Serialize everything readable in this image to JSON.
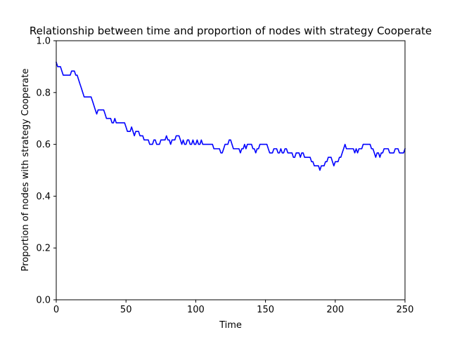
{
  "chart_data": {
    "type": "line",
    "title": "Relationship between time and proportion of nodes with strategy Cooperate",
    "xlabel": "Time",
    "ylabel": "Proportion of nodes with strategy Cooperate",
    "xlim": [
      0,
      250
    ],
    "ylim": [
      0.0,
      1.0
    ],
    "xticks": [
      0,
      50,
      100,
      150,
      200,
      250
    ],
    "xtick_labels": [
      "0",
      "50",
      "100",
      "150",
      "200",
      "250"
    ],
    "yticks": [
      0.0,
      0.2,
      0.4,
      0.6,
      0.8,
      1.0
    ],
    "ytick_labels": [
      "0.0",
      "0.2",
      "0.4",
      "0.6",
      "0.8",
      "1.0"
    ],
    "grid": false,
    "legend": "none",
    "series": [
      {
        "color": "#0000ff",
        "points": [
          [
            0,
            0.917
          ],
          [
            1,
            0.9
          ],
          [
            2,
            0.9
          ],
          [
            3,
            0.9
          ],
          [
            4,
            0.883
          ],
          [
            5,
            0.867
          ],
          [
            6,
            0.867
          ],
          [
            7,
            0.867
          ],
          [
            8,
            0.867
          ],
          [
            9,
            0.867
          ],
          [
            10,
            0.867
          ],
          [
            11,
            0.883
          ],
          [
            12,
            0.883
          ],
          [
            13,
            0.883
          ],
          [
            14,
            0.867
          ],
          [
            15,
            0.867
          ],
          [
            16,
            0.85
          ],
          [
            17,
            0.833
          ],
          [
            18,
            0.817
          ],
          [
            19,
            0.8
          ],
          [
            20,
            0.783
          ],
          [
            21,
            0.783
          ],
          [
            22,
            0.783
          ],
          [
            23,
            0.783
          ],
          [
            24,
            0.783
          ],
          [
            25,
            0.783
          ],
          [
            26,
            0.767
          ],
          [
            27,
            0.75
          ],
          [
            28,
            0.733
          ],
          [
            29,
            0.717
          ],
          [
            30,
            0.733
          ],
          [
            31,
            0.733
          ],
          [
            32,
            0.733
          ],
          [
            33,
            0.733
          ],
          [
            34,
            0.733
          ],
          [
            35,
            0.717
          ],
          [
            36,
            0.7
          ],
          [
            37,
            0.7
          ],
          [
            38,
            0.7
          ],
          [
            39,
            0.7
          ],
          [
            40,
            0.683
          ],
          [
            41,
            0.683
          ],
          [
            42,
            0.7
          ],
          [
            43,
            0.683
          ],
          [
            44,
            0.683
          ],
          [
            45,
            0.683
          ],
          [
            46,
            0.683
          ],
          [
            47,
            0.683
          ],
          [
            48,
            0.683
          ],
          [
            49,
            0.683
          ],
          [
            50,
            0.667
          ],
          [
            51,
            0.65
          ],
          [
            52,
            0.65
          ],
          [
            53,
            0.65
          ],
          [
            54,
            0.667
          ],
          [
            55,
            0.65
          ],
          [
            56,
            0.633
          ],
          [
            57,
            0.65
          ],
          [
            58,
            0.65
          ],
          [
            59,
            0.65
          ],
          [
            60,
            0.633
          ],
          [
            61,
            0.633
          ],
          [
            62,
            0.633
          ],
          [
            63,
            0.617
          ],
          [
            64,
            0.617
          ],
          [
            65,
            0.617
          ],
          [
            66,
            0.617
          ],
          [
            67,
            0.6
          ],
          [
            68,
            0.6
          ],
          [
            69,
            0.6
          ],
          [
            70,
            0.617
          ],
          [
            71,
            0.617
          ],
          [
            72,
            0.6
          ],
          [
            73,
            0.6
          ],
          [
            74,
            0.6
          ],
          [
            75,
            0.617
          ],
          [
            76,
            0.617
          ],
          [
            77,
            0.617
          ],
          [
            78,
            0.617
          ],
          [
            79,
            0.633
          ],
          [
            80,
            0.617
          ],
          [
            81,
            0.617
          ],
          [
            82,
            0.6
          ],
          [
            83,
            0.617
          ],
          [
            84,
            0.617
          ],
          [
            85,
            0.617
          ],
          [
            86,
            0.633
          ],
          [
            87,
            0.633
          ],
          [
            88,
            0.633
          ],
          [
            89,
            0.617
          ],
          [
            90,
            0.6
          ],
          [
            91,
            0.617
          ],
          [
            92,
            0.6
          ],
          [
            93,
            0.6
          ],
          [
            94,
            0.617
          ],
          [
            95,
            0.617
          ],
          [
            96,
            0.6
          ],
          [
            97,
            0.6
          ],
          [
            98,
            0.617
          ],
          [
            99,
            0.6
          ],
          [
            100,
            0.6
          ],
          [
            101,
            0.617
          ],
          [
            102,
            0.6
          ],
          [
            103,
            0.6
          ],
          [
            104,
            0.617
          ],
          [
            105,
            0.6
          ],
          [
            106,
            0.6
          ],
          [
            107,
            0.6
          ],
          [
            108,
            0.6
          ],
          [
            109,
            0.6
          ],
          [
            110,
            0.6
          ],
          [
            111,
            0.6
          ],
          [
            112,
            0.6
          ],
          [
            113,
            0.583
          ],
          [
            114,
            0.583
          ],
          [
            115,
            0.583
          ],
          [
            116,
            0.583
          ],
          [
            117,
            0.583
          ],
          [
            118,
            0.567
          ],
          [
            119,
            0.567
          ],
          [
            120,
            0.583
          ],
          [
            121,
            0.6
          ],
          [
            122,
            0.6
          ],
          [
            123,
            0.6
          ],
          [
            124,
            0.617
          ],
          [
            125,
            0.617
          ],
          [
            126,
            0.6
          ],
          [
            127,
            0.583
          ],
          [
            128,
            0.583
          ],
          [
            129,
            0.583
          ],
          [
            130,
            0.583
          ],
          [
            131,
            0.583
          ],
          [
            132,
            0.567
          ],
          [
            133,
            0.583
          ],
          [
            134,
            0.583
          ],
          [
            135,
            0.6
          ],
          [
            136,
            0.583
          ],
          [
            137,
            0.6
          ],
          [
            138,
            0.6
          ],
          [
            139,
            0.6
          ],
          [
            140,
            0.6
          ],
          [
            141,
            0.583
          ],
          [
            142,
            0.583
          ],
          [
            143,
            0.567
          ],
          [
            144,
            0.583
          ],
          [
            145,
            0.583
          ],
          [
            146,
            0.6
          ],
          [
            147,
            0.6
          ],
          [
            148,
            0.6
          ],
          [
            149,
            0.6
          ],
          [
            150,
            0.6
          ],
          [
            151,
            0.6
          ],
          [
            152,
            0.583
          ],
          [
            153,
            0.567
          ],
          [
            154,
            0.567
          ],
          [
            155,
            0.567
          ],
          [
            156,
            0.583
          ],
          [
            157,
            0.583
          ],
          [
            158,
            0.583
          ],
          [
            159,
            0.567
          ],
          [
            160,
            0.567
          ],
          [
            161,
            0.583
          ],
          [
            162,
            0.567
          ],
          [
            163,
            0.567
          ],
          [
            164,
            0.583
          ],
          [
            165,
            0.583
          ],
          [
            166,
            0.567
          ],
          [
            167,
            0.567
          ],
          [
            168,
            0.567
          ],
          [
            169,
            0.567
          ],
          [
            170,
            0.55
          ],
          [
            171,
            0.55
          ],
          [
            172,
            0.567
          ],
          [
            173,
            0.567
          ],
          [
            174,
            0.567
          ],
          [
            175,
            0.55
          ],
          [
            176,
            0.567
          ],
          [
            177,
            0.567
          ],
          [
            178,
            0.55
          ],
          [
            179,
            0.55
          ],
          [
            180,
            0.55
          ],
          [
            181,
            0.55
          ],
          [
            182,
            0.55
          ],
          [
            183,
            0.533
          ],
          [
            184,
            0.533
          ],
          [
            185,
            0.517
          ],
          [
            186,
            0.517
          ],
          [
            187,
            0.517
          ],
          [
            188,
            0.517
          ],
          [
            189,
            0.5
          ],
          [
            190,
            0.517
          ],
          [
            191,
            0.517
          ],
          [
            192,
            0.517
          ],
          [
            193,
            0.533
          ],
          [
            194,
            0.533
          ],
          [
            195,
            0.55
          ],
          [
            196,
            0.55
          ],
          [
            197,
            0.55
          ],
          [
            198,
            0.533
          ],
          [
            199,
            0.517
          ],
          [
            200,
            0.533
          ],
          [
            201,
            0.533
          ],
          [
            202,
            0.533
          ],
          [
            203,
            0.55
          ],
          [
            204,
            0.55
          ],
          [
            205,
            0.567
          ],
          [
            206,
            0.583
          ],
          [
            207,
            0.6
          ],
          [
            208,
            0.583
          ],
          [
            209,
            0.583
          ],
          [
            210,
            0.583
          ],
          [
            211,
            0.583
          ],
          [
            212,
            0.583
          ],
          [
            213,
            0.583
          ],
          [
            214,
            0.567
          ],
          [
            215,
            0.583
          ],
          [
            216,
            0.567
          ],
          [
            217,
            0.583
          ],
          [
            218,
            0.583
          ],
          [
            219,
            0.583
          ],
          [
            220,
            0.6
          ],
          [
            221,
            0.6
          ],
          [
            222,
            0.6
          ],
          [
            223,
            0.6
          ],
          [
            224,
            0.6
          ],
          [
            225,
            0.6
          ],
          [
            226,
            0.583
          ],
          [
            227,
            0.583
          ],
          [
            228,
            0.567
          ],
          [
            229,
            0.55
          ],
          [
            230,
            0.567
          ],
          [
            231,
            0.567
          ],
          [
            232,
            0.55
          ],
          [
            233,
            0.567
          ],
          [
            234,
            0.567
          ],
          [
            235,
            0.583
          ],
          [
            236,
            0.583
          ],
          [
            237,
            0.583
          ],
          [
            238,
            0.583
          ],
          [
            239,
            0.567
          ],
          [
            240,
            0.567
          ],
          [
            241,
            0.567
          ],
          [
            242,
            0.567
          ],
          [
            243,
            0.583
          ],
          [
            244,
            0.583
          ],
          [
            245,
            0.583
          ],
          [
            246,
            0.567
          ],
          [
            247,
            0.567
          ],
          [
            248,
            0.567
          ],
          [
            249,
            0.567
          ],
          [
            250,
            0.583
          ]
        ]
      }
    ]
  }
}
